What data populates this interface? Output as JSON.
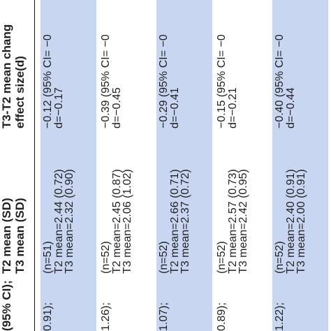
{
  "header": {
    "col0": [
      "(95% CI);",
      ""
    ],
    "col1": [
      "T2 mean (SD)",
      "T3 mean (SD)"
    ],
    "col2": [
      "T3-T2 mean chang",
      "effect size(d)"
    ]
  },
  "rows": [
    {
      "ci": "0.91);",
      "n": "(n=51)",
      "t2": "T2 mean=2.44 (0.72)",
      "t3": "T3 mean=2.32 (0.90)",
      "change": "−0.12 (95% CI= −0",
      "d": "d=−0.17",
      "shaded": true
    },
    {
      "ci": "1.26);",
      "n": "(n=52)",
      "t2": "T2 mean=2.45 (0.87)",
      "t3": "T3 mean=2.06 (1.02)",
      "change": "−0.39 (95% CI= −0",
      "d": "d=−0.45",
      "shaded": false
    },
    {
      "ci": "1.07);",
      "n": "(n=52)",
      "t2": "T2 mean=2.66 (0.71)",
      "t3": "T3 mean=2.37 (0.72)",
      "change": "−0.29 (95% CI= −0",
      "d": "d=−0.41",
      "shaded": true
    },
    {
      "ci": "0.89);",
      "n": "(n=52)",
      "t2": "T2 mean=2.57 (0.73)",
      "t3": "T3 mean=2.42 (0.95)",
      "change": "−0.15 (95% CI= −0",
      "d": "d=−0.21",
      "shaded": false
    },
    {
      "ci": "1.22);",
      "n": "(n=52)",
      "t2": "T2 mean=2.40 (0.91)",
      "t3": "T3 mean=2.00 (0.91)",
      "change": "−0.40 (95% CI= −0",
      "d": "d=−0.44",
      "shaded": true
    }
  ]
}
